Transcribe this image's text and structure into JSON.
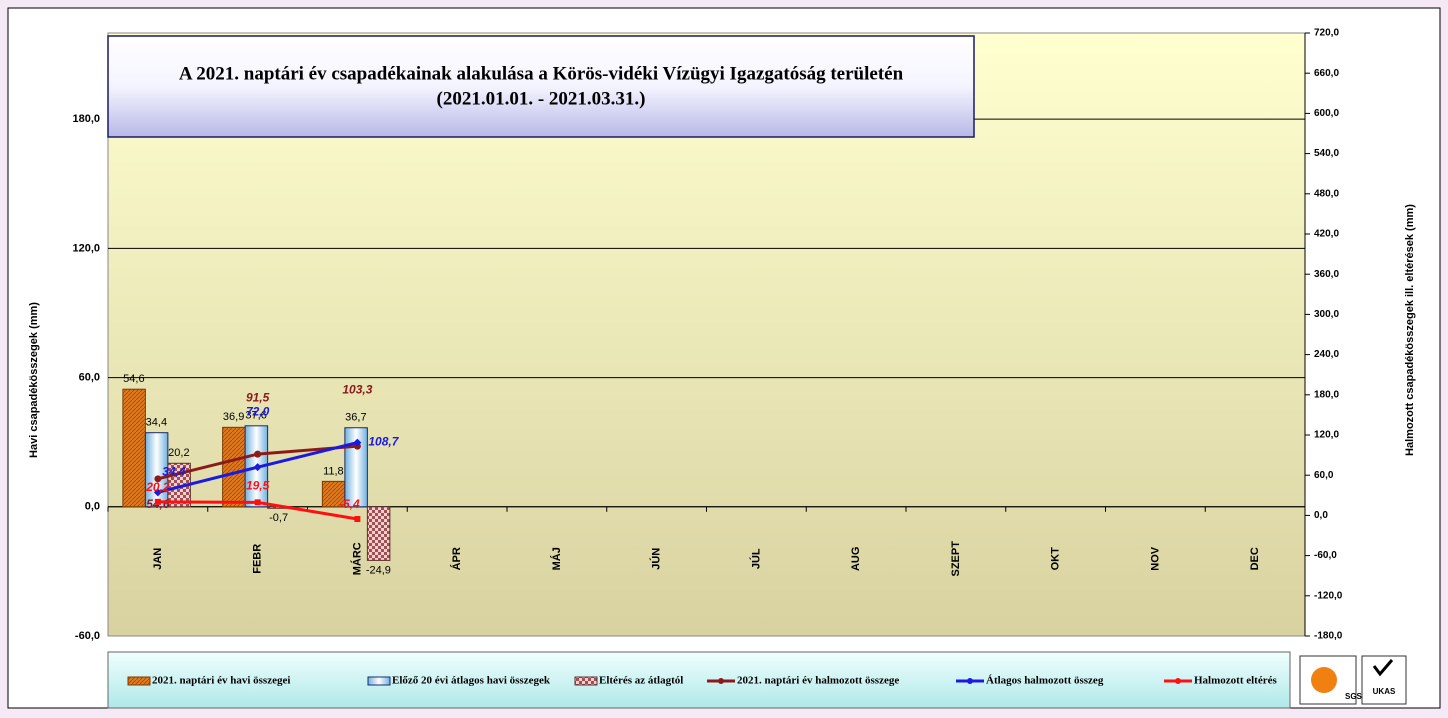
{
  "chart_data": {
    "type": "bar",
    "title": "A 2021. naptári év csapadékainak alakulása a Körös-vidéki Vízügyi Igazgatóság területén",
    "subtitle": "(2021.01.01. - 2021.03.31.)",
    "y_label": "Havi csapadékösszegek (mm)",
    "y2_label": "Halmozott csapadékösszegek ill. eltérések (mm)",
    "categories": [
      "JAN",
      "FEBR",
      "MÁRC",
      "ÁPR",
      "MÁJ",
      "JÚN",
      "JÚL",
      "AUG",
      "SZEPT",
      "OKT",
      "NOV",
      "DEC"
    ],
    "ylim": [
      -60,
      220
    ],
    "yticks": [
      {
        "value": -60,
        "label": "-60,0"
      },
      {
        "value": 0,
        "label": "0,0"
      },
      {
        "value": 60,
        "label": "60,0"
      },
      {
        "value": 120,
        "label": "120,0"
      },
      {
        "value": 180,
        "label": "180,0"
      }
    ],
    "y2lim": [
      -180,
      720
    ],
    "y2ticks": [
      {
        "value": -180,
        "label": "-180,0"
      },
      {
        "value": -120,
        "label": "-120,0"
      },
      {
        "value": -60,
        "label": "-60,0"
      },
      {
        "value": 0,
        "label": "0,0"
      },
      {
        "value": 60,
        "label": "60,0"
      },
      {
        "value": 120,
        "label": "120,0"
      },
      {
        "value": 180,
        "label": "180,0"
      },
      {
        "value": 240,
        "label": "240,0"
      },
      {
        "value": 300,
        "label": "300,0"
      },
      {
        "value": 360,
        "label": "360,0"
      },
      {
        "value": 420,
        "label": "420,0"
      },
      {
        "value": 480,
        "label": "480,0"
      },
      {
        "value": 540,
        "label": "540,0"
      },
      {
        "value": 600,
        "label": "600,0"
      },
      {
        "value": 660,
        "label": "660,0"
      },
      {
        "value": 720,
        "label": "720,0"
      }
    ],
    "grid": true,
    "legend": "bottom",
    "series": [
      {
        "name": "2021. naptári év havi összegei",
        "color": "#e07a1f",
        "kind": "bar",
        "values": [
          54.6,
          36.9,
          11.8,
          null,
          null,
          null,
          null,
          null,
          null,
          null,
          null,
          null
        ],
        "value_labels": [
          "54,6",
          "36,9",
          "11,8",
          null,
          null,
          null,
          null,
          null,
          null,
          null,
          null,
          null
        ]
      },
      {
        "name": "Előző 20 évi átlagos havi összegek",
        "color": "#a8d8f0",
        "kind": "bar",
        "values": [
          34.4,
          37.6,
          36.7,
          null,
          null,
          null,
          null,
          null,
          null,
          null,
          null,
          null
        ],
        "value_labels": [
          "34,4",
          "37,6",
          "36,7",
          null,
          null,
          null,
          null,
          null,
          null,
          null,
          null,
          null
        ]
      },
      {
        "name": "Eltérés az átlagtól",
        "color": "#a05050",
        "kind": "bar",
        "values": [
          20.2,
          -0.7,
          -24.9,
          null,
          null,
          null,
          null,
          null,
          null,
          null,
          null,
          null
        ],
        "value_labels": [
          "20,2",
          "-0,7",
          "-24,9",
          null,
          null,
          null,
          null,
          null,
          null,
          null,
          null,
          null
        ]
      },
      {
        "name": "2021. naptári év halmozott összege",
        "color": "#8b1a1a",
        "kind": "line",
        "axis": "y2",
        "values": [
          54.6,
          91.5,
          103.3,
          null,
          null,
          null,
          null,
          null,
          null,
          null,
          null,
          null
        ],
        "value_labels": [
          "54,6",
          "91,5",
          "103,3",
          null,
          null,
          null,
          null,
          null,
          null,
          null,
          null,
          null
        ]
      },
      {
        "name": "Átlagos halmozott összeg",
        "color": "#1a1ae0",
        "kind": "line",
        "axis": "y2",
        "values": [
          34.4,
          72.0,
          108.7,
          null,
          null,
          null,
          null,
          null,
          null,
          null,
          null,
          null
        ],
        "value_labels": [
          "34,4",
          "72,0",
          "108,7",
          null,
          null,
          null,
          null,
          null,
          null,
          null,
          null,
          null
        ]
      },
      {
        "name": "Halmozott eltérés",
        "color": "#ff1010",
        "kind": "line",
        "axis": "y2",
        "values": [
          20.2,
          19.5,
          -5.4,
          null,
          null,
          null,
          null,
          null,
          null,
          null,
          null,
          null
        ],
        "value_labels": [
          "20,2",
          "19,5",
          "-5,4",
          null,
          null,
          null,
          null,
          null,
          null,
          null,
          null,
          null
        ]
      }
    ]
  },
  "badges": [
    "SGS",
    "UKAS"
  ]
}
